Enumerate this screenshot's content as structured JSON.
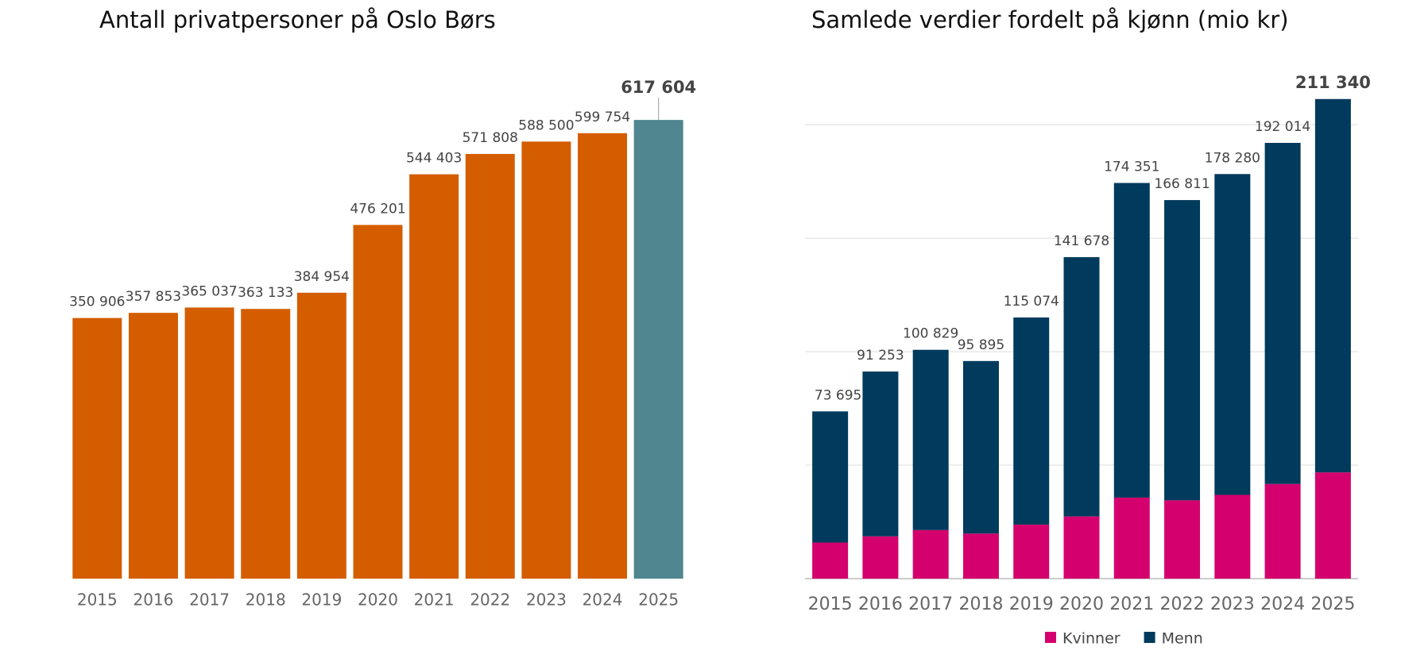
{
  "charts": [
    {
      "chart_data": {
        "type": "bar",
        "title": "Antall privatpersoner på Oslo Børs",
        "categories": [
          "2015",
          "2016",
          "2017",
          "2018",
          "2019",
          "2020",
          "2021",
          "2022",
          "2023",
          "2024",
          "2025"
        ],
        "values": [
          350906,
          357853,
          365037,
          363133,
          384954,
          476201,
          544403,
          571808,
          588500,
          599754,
          617604
        ],
        "value_labels": [
          "350 906",
          "357 853",
          "365 037",
          "363 133",
          "384 954",
          "476 201",
          "544 403",
          "571 808",
          "588 500",
          "599 754",
          "617 604"
        ],
        "colors": [
          "#d45d00",
          "#d45d00",
          "#d45d00",
          "#d45d00",
          "#d45d00",
          "#d45d00",
          "#d45d00",
          "#d45d00",
          "#d45d00",
          "#d45d00",
          "#4f8690"
        ],
        "ylim": [
          0,
          700000
        ]
      }
    },
    {
      "chart_data": {
        "type": "stacked_bar",
        "title": "Samlede verdier fordelt på kjønn (mio kr)",
        "categories": [
          "2015",
          "2016",
          "2017",
          "2018",
          "2019",
          "2020",
          "2021",
          "2022",
          "2023",
          "2024",
          "2025"
        ],
        "series": [
          {
            "name": "Kvinner",
            "color": "#d4006e",
            "values": [
              15900,
              18650,
              21400,
              19850,
              23800,
              27400,
              35700,
              34500,
              36900,
              41700,
              46800
            ]
          },
          {
            "name": "Menn",
            "color": "#003a5c",
            "values": [
              57795,
              72603,
              79429,
              76045,
              91274,
              114278,
              138651,
              132311,
              141380,
              150314,
              164540
            ]
          }
        ],
        "totals": [
          73695,
          91253,
          100829,
          95895,
          115074,
          141678,
          174351,
          166811,
          178280,
          192014,
          211340
        ],
        "total_labels": [
          "73 695",
          "91 253",
          "100 829",
          "95 895",
          "115 074",
          "141 678",
          "174 351",
          "166 811",
          "178 280",
          "192 014",
          "211 340"
        ],
        "ylim": [
          0,
          220000
        ],
        "yticks": [
          0,
          50000,
          100000,
          150000,
          200000
        ],
        "grid": true
      }
    }
  ]
}
